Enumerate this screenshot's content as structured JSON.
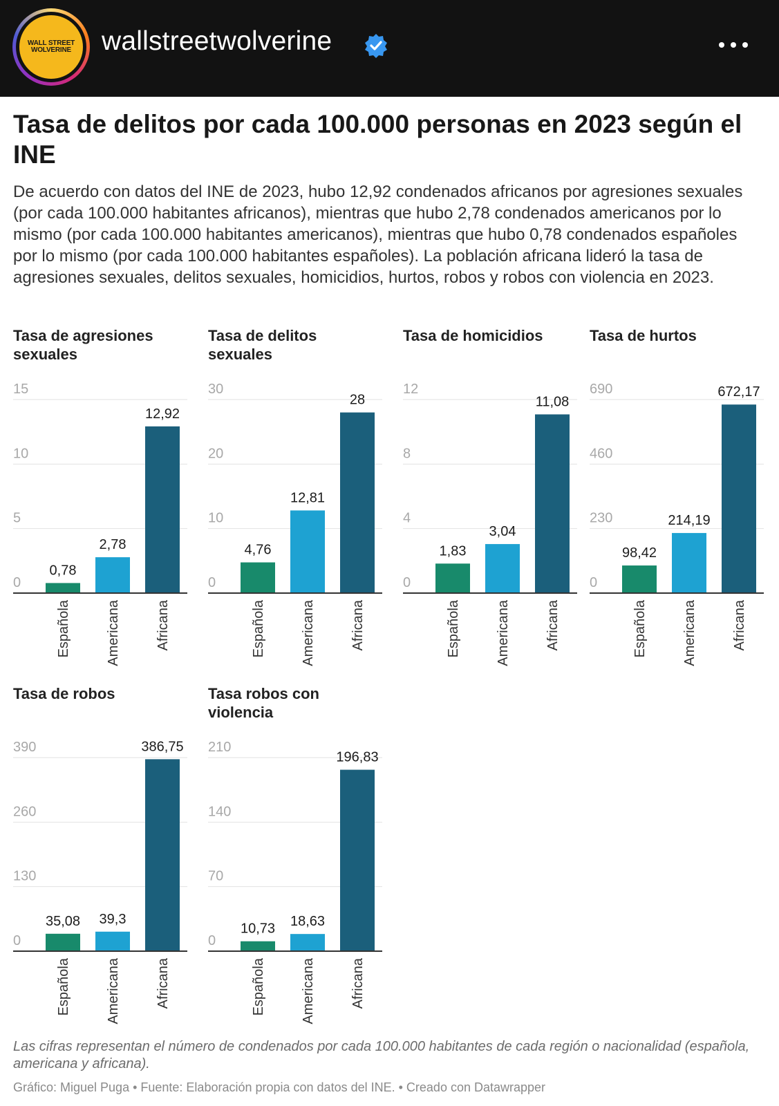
{
  "header": {
    "username": "wallstreetwolverine",
    "avatar_text_line1": "WALL STREET",
    "avatar_text_line2": "WOLVERINE"
  },
  "title": "Tasa de delitos por cada 100.000 personas en 2023 según el INE",
  "description": "De acuerdo con datos del INE de 2023, hubo 12,92 condenados africanos por agresiones sexuales (por cada 100.000 habitantes africanos), mientras que hubo 2,78 condenados americanos por lo mismo (por cada 100.000 habitantes americanos), mientras que hubo 0,78 condenados españoles por lo mismo (por cada 100.000 habitantes españoles). La población africana lideró la tasa de agresiones sexuales, delitos sexuales, homicidios, hurtos, robos y robos con violencia en 2023.",
  "colors": {
    "espanola": "#188a6b",
    "americana": "#1ea2d2",
    "africana": "#1b5f7b"
  },
  "chart_data": [
    {
      "type": "bar",
      "title": "Tasa de agresiones sexuales",
      "categories": [
        "Española",
        "Americana",
        "Africana"
      ],
      "values": [
        0.78,
        2.78,
        12.92
      ],
      "value_labels": [
        "0,78",
        "2,78",
        "12,92"
      ],
      "ylim": [
        0,
        15
      ],
      "yticks": [
        0,
        5,
        10,
        15
      ],
      "ytick_labels": [
        "0",
        "5",
        "10",
        "15"
      ],
      "grid": true
    },
    {
      "type": "bar",
      "title": "Tasa de delitos sexuales",
      "categories": [
        "Española",
        "Americana",
        "Africana"
      ],
      "values": [
        4.76,
        12.81,
        28
      ],
      "value_labels": [
        "4,76",
        "12,81",
        "28"
      ],
      "ylim": [
        0,
        30
      ],
      "yticks": [
        0,
        10,
        20,
        30
      ],
      "ytick_labels": [
        "0",
        "10",
        "20",
        "30"
      ],
      "grid": true
    },
    {
      "type": "bar",
      "title": "Tasa de homicidios",
      "categories": [
        "Española",
        "Americana",
        "Africana"
      ],
      "values": [
        1.83,
        3.04,
        11.08
      ],
      "value_labels": [
        "1,83",
        "3,04",
        "11,08"
      ],
      "ylim": [
        0,
        12
      ],
      "yticks": [
        0,
        4,
        8,
        12
      ],
      "ytick_labels": [
        "0",
        "4",
        "8",
        "12"
      ],
      "grid": true
    },
    {
      "type": "bar",
      "title": "Tasa de hurtos",
      "categories": [
        "Española",
        "Americana",
        "Africana"
      ],
      "values": [
        98.42,
        214.19,
        672.17
      ],
      "value_labels": [
        "98,42",
        "214,19",
        "672,17"
      ],
      "ylim": [
        0,
        690
      ],
      "yticks": [
        0,
        230,
        460,
        690
      ],
      "ytick_labels": [
        "0",
        "230",
        "460",
        "690"
      ],
      "grid": true
    },
    {
      "type": "bar",
      "title": "Tasa de robos",
      "categories": [
        "Española",
        "Americana",
        "Africana"
      ],
      "values": [
        35.08,
        39.3,
        386.75
      ],
      "value_labels": [
        "35,08",
        "39,3",
        "386,75"
      ],
      "ylim": [
        0,
        390
      ],
      "yticks": [
        0,
        130,
        260,
        390
      ],
      "ytick_labels": [
        "0",
        "130",
        "260",
        "390"
      ],
      "grid": true
    },
    {
      "type": "bar",
      "title": "Tasa robos con violencia",
      "categories": [
        "Española",
        "Americana",
        "Africana"
      ],
      "values": [
        10.73,
        18.63,
        196.83
      ],
      "value_labels": [
        "10,73",
        "18,63",
        "196,83"
      ],
      "ylim": [
        0,
        210
      ],
      "yticks": [
        0,
        70,
        140,
        210
      ],
      "ytick_labels": [
        "0",
        "70",
        "140",
        "210"
      ],
      "grid": true
    }
  ],
  "notes": "Las cifras representan el número de condenados por cada 100.000 habitantes de cada región o nacionalidad (española, americana y africana).",
  "byline": "Gráfico: Miguel Puga • Fuente: Elaboración propia con datos del INE. • Creado con Datawrapper"
}
